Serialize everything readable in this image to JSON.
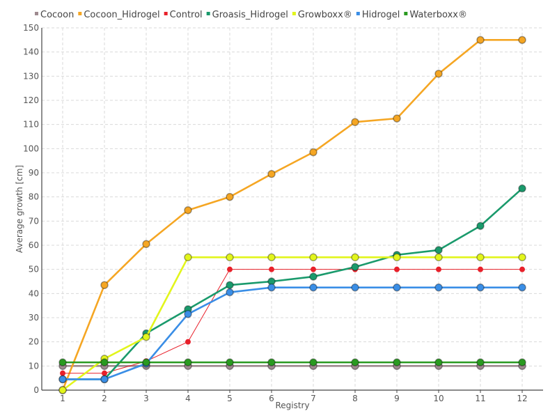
{
  "chart_data": {
    "type": "line",
    "title": "",
    "xlabel": "Registry",
    "ylabel": "Average growth [cm]",
    "categories": [
      "1",
      "2",
      "3",
      "4",
      "5",
      "6",
      "7",
      "8",
      "9",
      "10",
      "11",
      "12"
    ],
    "ylim": [
      0,
      150
    ],
    "yticks": [
      0,
      10,
      20,
      30,
      40,
      50,
      60,
      70,
      80,
      90,
      100,
      110,
      120,
      130,
      140,
      150
    ],
    "grid": true,
    "legend_position": "top",
    "series": [
      {
        "name": "Cocoon",
        "color": "#9e8a8f",
        "values": [
          10,
          10,
          10,
          10,
          10,
          10,
          10,
          10,
          10,
          10,
          10,
          10
        ]
      },
      {
        "name": "Cocoon_Hidrogel",
        "color": "#f5a623",
        "values": [
          0,
          43.5,
          60.5,
          74.5,
          80,
          89.5,
          98.5,
          111,
          112.5,
          131,
          145,
          145
        ]
      },
      {
        "name": "Control",
        "color": "#e8202a",
        "values": [
          7,
          7,
          12,
          20,
          50,
          50,
          50,
          50,
          50,
          50,
          50,
          50
        ]
      },
      {
        "name": "Groasis_Hidrogel",
        "color": "#1a9a6c",
        "values": [
          4.5,
          4.5,
          23.5,
          33.5,
          43.5,
          45,
          47,
          51,
          56,
          58,
          68,
          83.5
        ]
      },
      {
        "name": "Growboxx®",
        "color": "#e2f51c",
        "values": [
          0,
          13,
          22,
          55,
          55,
          55,
          55,
          55,
          55,
          55,
          55,
          55
        ]
      },
      {
        "name": "Hidrogel",
        "color": "#3a8ee6",
        "values": [
          4.5,
          4.5,
          11,
          31.5,
          40.5,
          42.5,
          42.5,
          42.5,
          42.5,
          42.5,
          42.5,
          42.5
        ]
      },
      {
        "name": "Waterboxx®",
        "color": "#2a9a20",
        "values": [
          11.5,
          11.5,
          11.5,
          11.5,
          11.5,
          11.5,
          11.5,
          11.5,
          11.5,
          11.5,
          11.5,
          11.5
        ]
      }
    ]
  }
}
